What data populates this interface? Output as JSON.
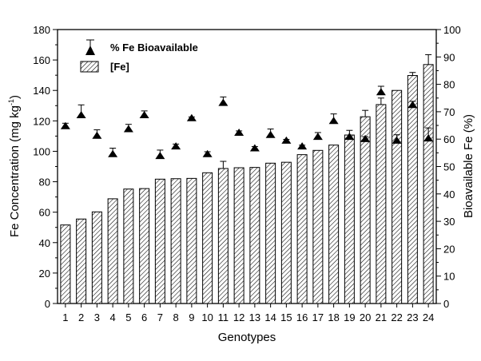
{
  "chart_data": {
    "type": "bar",
    "xlabel": "Genotypes",
    "ylabel_prefix": "Fe Concentration (mg kg",
    "ylabel_sup": "-1",
    "ylabel_suffix": ")",
    "y2label": "Bioavailable Fe (%)",
    "categories": [
      "1",
      "2",
      "3",
      "4",
      "5",
      "6",
      "7",
      "8",
      "9",
      "10",
      "11",
      "12",
      "13",
      "14",
      "15",
      "16",
      "17",
      "18",
      "19",
      "20",
      "21",
      "22",
      "23",
      "24"
    ],
    "ylim": [
      0,
      180
    ],
    "yticks": [
      0,
      20,
      40,
      60,
      80,
      100,
      120,
      140,
      160,
      180
    ],
    "y2lim": [
      0,
      100
    ],
    "y2ticks": [
      0,
      10,
      20,
      30,
      40,
      50,
      60,
      70,
      80,
      90,
      100
    ],
    "grid": false,
    "legend_position": "top-left",
    "series": [
      {
        "name": "[Fe]",
        "axis": "left",
        "style": "hatched-bar",
        "values": [
          51.6,
          55.5,
          60.2,
          68.8,
          75.2,
          75.5,
          81.7,
          82.0,
          82.2,
          85.9,
          88.7,
          89.2,
          89.4,
          92.2,
          92.8,
          97.8,
          100.6,
          104.1,
          110.7,
          122.7,
          130.7,
          140.0,
          149.8,
          157.0
        ],
        "errors": [
          0,
          0,
          0,
          0,
          0,
          0,
          0,
          0,
          0,
          0,
          4.7,
          0,
          0,
          0,
          0,
          0,
          0,
          0,
          0,
          4.2,
          4.3,
          0,
          2.0,
          6.5
        ]
      },
      {
        "name": "% Fe Bioavailable",
        "axis": "right",
        "style": "triangle",
        "values": [
          64.6,
          68.6,
          61.1,
          54.4,
          63.5,
          68.6,
          53.7,
          57.2,
          67.5,
          54.4,
          73.1,
          62.2,
          56.5,
          61.4,
          59.3,
          57.2,
          60.7,
          66.5,
          60.7,
          59.9,
          77.0,
          59.3,
          72.3,
          60.1
        ],
        "errors": [
          1.2,
          3.9,
          2.3,
          2.3,
          1.9,
          1.7,
          2.3,
          1.0,
          0.6,
          1.0,
          2.3,
          0.8,
          0.8,
          2.3,
          0.6,
          0.6,
          1.7,
          2.7,
          2.5,
          1.0,
          2.3,
          2.3,
          1.5,
          4.0
        ]
      }
    ]
  }
}
